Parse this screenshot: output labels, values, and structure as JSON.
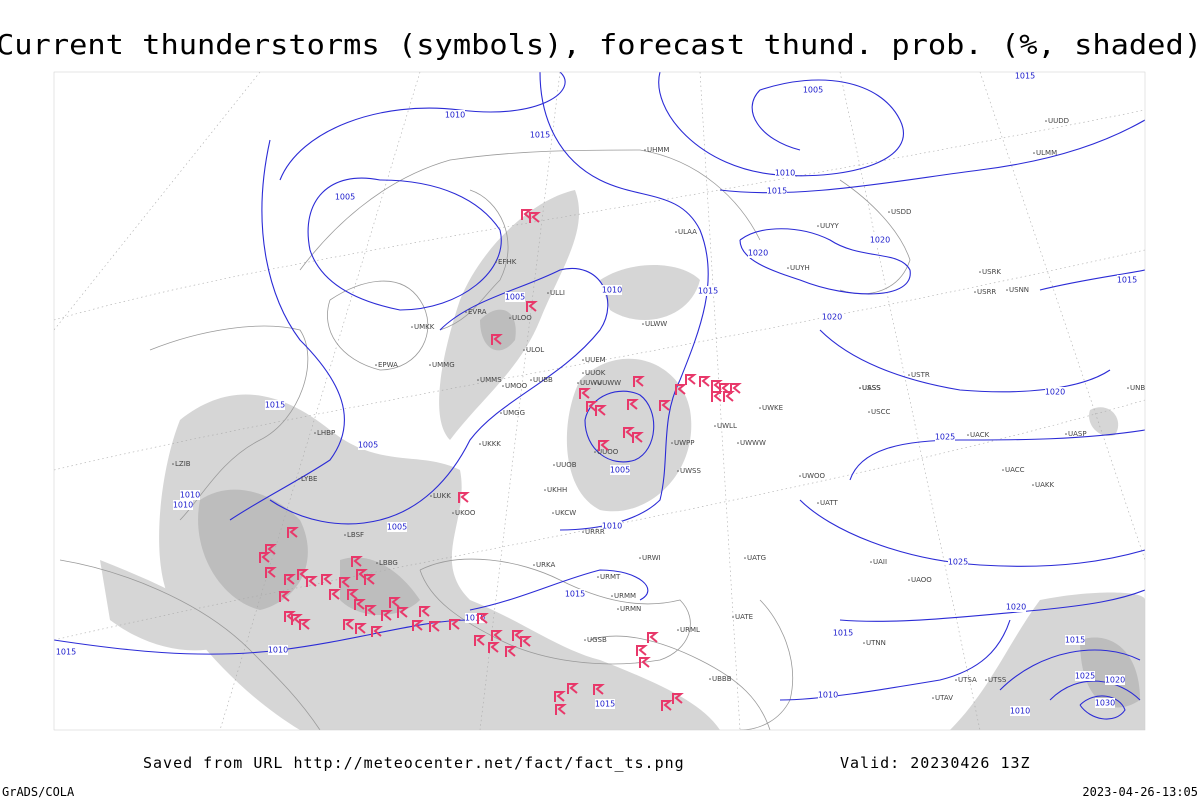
{
  "header": {
    "title": "Current thunderstorms (symbols), forecast thund. prob. (%, shaded)"
  },
  "map": {
    "isobar_labels": [
      "1010",
      "1015",
      "1005",
      "1005",
      "1010",
      "1015",
      "1015",
      "1005",
      "1010",
      "1010",
      "1005",
      "1010",
      "1005",
      "1010",
      "1015",
      "1010",
      "1015",
      "1015",
      "1010",
      "1015",
      "1020",
      "1020",
      "1020",
      "1010",
      "1015",
      "1005",
      "1015",
      "1020",
      "1025",
      "1025",
      "1020",
      "1015",
      "1025",
      "1020",
      "1030",
      "1015",
      "1010"
    ],
    "stations": [
      "EFHK",
      "ULLI",
      "ULOO",
      "ULOL",
      "EVRA",
      "UMMG",
      "UMMS",
      "UMOO",
      "UUEM",
      "UUWW",
      "UUBB",
      "UMGG",
      "UKKK",
      "UUOO",
      "UUOB",
      "UKHH",
      "UKCW",
      "UKOO",
      "ULAA",
      "ULWW",
      "UUYY",
      "UUYH",
      "UWKE",
      "UWLL",
      "UWPP",
      "UWSS",
      "UWWW",
      "UUWV",
      "UASS",
      "UACC",
      "UAKK",
      "UAOO",
      "UATT",
      "UAII",
      "UUOK",
      "URRR",
      "URWI",
      "URMT",
      "URMM",
      "URMN",
      "URML",
      "UGSB",
      "UBBB",
      "LBSF",
      "LBBG",
      "LYBE",
      "LHBP",
      "LZIB",
      "EPWA",
      "UMKK",
      "LUKK",
      "URKA",
      "UATG",
      "UATE",
      "UTAV",
      "UTSA",
      "UTSS",
      "UTNN",
      "USSS",
      "USCC",
      "USTR",
      "USDD",
      "USRK",
      "USRR",
      "USNN",
      "UNBB",
      "UASP",
      "UACK",
      "UWOO",
      "UHMM",
      "ULMM",
      "UUDD"
    ]
  },
  "footer": {
    "source": "Saved from URL http://meteocenter.net/fact/fact_ts.png",
    "valid": "Valid: 20230426 13Z",
    "software": "GrADS/COLA",
    "timestamp": "2023-04-26-13:05"
  }
}
